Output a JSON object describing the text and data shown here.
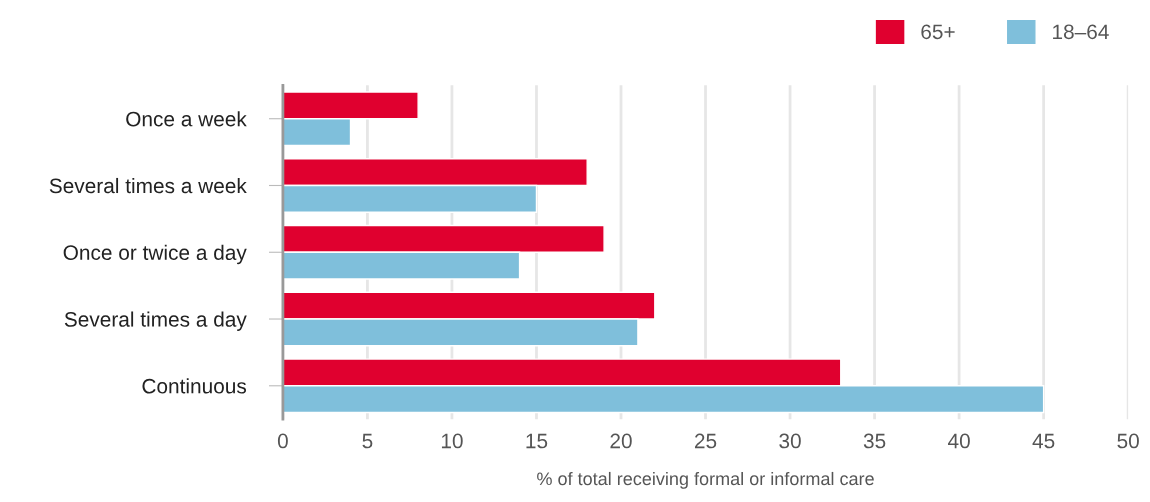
{
  "chart_data": {
    "type": "bar",
    "orientation": "horizontal",
    "xlabel": "% of total receiving formal or informal care",
    "categories": [
      "Once a week",
      "Several times a week",
      "Once or twice a day",
      "Several times a day",
      "Continuous"
    ],
    "series": [
      {
        "name": "65+",
        "color": "#e0002f",
        "values": [
          8,
          18,
          19,
          22,
          33
        ]
      },
      {
        "name": "18–64",
        "color": "#7fbfdb",
        "values": [
          4,
          15,
          14,
          21,
          45
        ]
      }
    ],
    "xlim": [
      0,
      50
    ],
    "xticks": [
      0,
      5,
      10,
      15,
      20,
      25,
      30,
      35,
      40,
      45,
      50
    ],
    "grid": "x",
    "legend": "top right"
  }
}
